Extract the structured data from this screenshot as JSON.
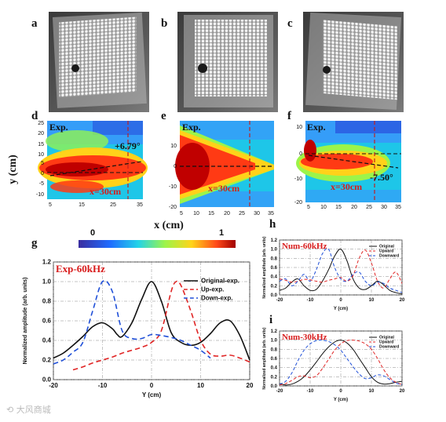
{
  "panels": {
    "a": "a",
    "b": "b",
    "c": "c",
    "d": "d",
    "e": "e",
    "f": "f",
    "g": "g",
    "h": "h",
    "i": "i"
  },
  "maps": [
    {
      "id": "d",
      "exp_label": "Exp.",
      "angle_label": "+6.79°",
      "x_line_label": "x=30cm",
      "y_ticks": [
        "25",
        "20",
        "15",
        "10",
        "5",
        "0",
        "-5",
        "-10"
      ],
      "x_ticks": [
        "5",
        "15",
        "25",
        "35"
      ]
    },
    {
      "id": "e",
      "exp_label": "Exp.",
      "x_line_label": "x=30cm",
      "y_ticks": [
        "10",
        "0",
        "-10",
        "-20"
      ],
      "x_ticks": [
        "5",
        "10",
        "15",
        "20",
        "25",
        "30",
        "35"
      ]
    },
    {
      "id": "f",
      "exp_label": "Exp.",
      "angle_label": "-7.50°",
      "x_line_label": "x=30cm",
      "y_ticks": [
        "10",
        "0",
        "-10",
        "-20"
      ],
      "x_ticks": [
        "5",
        "10",
        "15",
        "20",
        "25",
        "30",
        "35"
      ]
    }
  ],
  "y_axis_title": "y (cm)",
  "x_axis_title": "x (cm)",
  "colorbar": {
    "min_label": "0",
    "max_label": "1"
  },
  "chart_data": [
    {
      "id": "g",
      "type": "line",
      "title": "Exp-60kHz",
      "xlabel": "Y (cm)",
      "ylabel": "Normalized amplitude (arb. units)",
      "xlim": [
        -20,
        20
      ],
      "ylim": [
        0.0,
        1.2
      ],
      "x_ticks": [
        "-20",
        "-10",
        "0",
        "10",
        "20"
      ],
      "y_ticks": [
        "0.0",
        "0.2",
        "0.4",
        "0.6",
        "0.8",
        "1.0",
        "1.2"
      ],
      "grid": true,
      "legend": "top-right",
      "series": [
        {
          "name": "Original-exp.",
          "color": "#111111",
          "dash": "solid",
          "x": [
            -20,
            -18,
            -16,
            -14,
            -12,
            -10,
            -8,
            -7,
            -6,
            -4,
            -2,
            0,
            2,
            4,
            6,
            8,
            10,
            12,
            14,
            16,
            18,
            20
          ],
          "y": [
            0.22,
            0.27,
            0.35,
            0.44,
            0.54,
            0.58,
            0.52,
            0.46,
            0.44,
            0.58,
            0.82,
            1.0,
            0.8,
            0.48,
            0.38,
            0.35,
            0.38,
            0.47,
            0.58,
            0.6,
            0.45,
            0.2
          ]
        },
        {
          "name": "Up-exp.",
          "color": "#e02424",
          "dash": "dashed",
          "x": [
            -16,
            -14,
            -12,
            -10,
            -8,
            -6,
            -4,
            -2,
            0,
            2,
            4,
            5,
            6,
            8,
            10,
            12,
            14,
            16,
            18,
            20
          ],
          "y": [
            0.1,
            0.13,
            0.17,
            0.2,
            0.23,
            0.27,
            0.3,
            0.33,
            0.38,
            0.5,
            0.9,
            1.0,
            0.96,
            0.7,
            0.4,
            0.26,
            0.24,
            0.25,
            0.22,
            0.18
          ]
        },
        {
          "name": "Down-exp.",
          "color": "#1f4fd8",
          "dash": "dashed",
          "x": [
            -20,
            -18,
            -16,
            -14,
            -12,
            -10,
            -8,
            -6,
            -4,
            -2,
            0,
            2,
            4,
            6,
            8,
            10,
            12
          ],
          "y": [
            0.16,
            0.2,
            0.28,
            0.38,
            0.7,
            1.0,
            0.9,
            0.5,
            0.42,
            0.42,
            0.46,
            0.45,
            0.43,
            0.4,
            0.35,
            0.3,
            0.22
          ]
        }
      ]
    },
    {
      "id": "h",
      "type": "line",
      "title": "Num-60kHz",
      "xlabel": "Y (cm)",
      "ylabel": "Normalized amplitude (arb. units)",
      "xlim": [
        -20,
        20
      ],
      "ylim": [
        0.0,
        1.2
      ],
      "x_ticks": [
        "-20",
        "-10",
        "0",
        "10",
        "20"
      ],
      "y_ticks": [
        "0.0",
        "0.2",
        "0.4",
        "0.6",
        "0.8",
        "1.0",
        "1.2"
      ],
      "grid": true,
      "legend": "top-right",
      "series": [
        {
          "name": "Original",
          "color": "#111111",
          "dash": "solid",
          "x": [
            -20,
            -18,
            -16,
            -14,
            -12,
            -10,
            -8,
            -6,
            -4,
            -2,
            0,
            2,
            4,
            6,
            8,
            10,
            12,
            14,
            16,
            18,
            20
          ],
          "y": [
            0.1,
            0.15,
            0.28,
            0.35,
            0.2,
            0.1,
            0.12,
            0.3,
            0.55,
            0.85,
            1.0,
            0.75,
            0.35,
            0.15,
            0.12,
            0.2,
            0.3,
            0.22,
            0.1,
            0.05,
            0.02
          ]
        },
        {
          "name": "Upward",
          "color": "#e02424",
          "dash": "dashed",
          "x": [
            -20,
            -18,
            -16,
            -14,
            -12,
            -10,
            -8,
            -6,
            -4,
            -2,
            0,
            2,
            4,
            6,
            8,
            10,
            12,
            14,
            16,
            18,
            20
          ],
          "y": [
            0.35,
            0.32,
            0.28,
            0.3,
            0.34,
            0.33,
            0.3,
            0.28,
            0.32,
            0.35,
            0.38,
            0.3,
            0.42,
            0.8,
            0.98,
            0.7,
            0.3,
            0.15,
            0.35,
            0.5,
            0.25
          ]
        },
        {
          "name": "Downward",
          "color": "#1f4fd8",
          "dash": "dashed",
          "x": [
            -20,
            -18,
            -16,
            -14,
            -12,
            -10,
            -8,
            -6,
            -4,
            -2,
            0,
            2,
            4,
            6,
            8,
            10,
            12,
            14,
            16,
            18,
            20
          ],
          "y": [
            0.3,
            0.35,
            0.2,
            0.3,
            0.45,
            0.3,
            0.55,
            0.9,
            1.0,
            0.6,
            0.35,
            0.3,
            0.45,
            0.5,
            0.3,
            0.2,
            0.28,
            0.25,
            0.15,
            0.1,
            0.05
          ]
        }
      ]
    },
    {
      "id": "i",
      "type": "line",
      "title": "Num-30kHz",
      "xlabel": "Y (cm)",
      "ylabel": "Normalized amplitude (arb. units)",
      "xlim": [
        -20,
        20
      ],
      "ylim": [
        0.0,
        1.2
      ],
      "x_ticks": [
        "-20",
        "-10",
        "0",
        "10",
        "20"
      ],
      "y_ticks": [
        "0.0",
        "0.2",
        "0.4",
        "0.6",
        "0.8",
        "1.0",
        "1.2"
      ],
      "grid": true,
      "legend": "top-right",
      "series": [
        {
          "name": "Original",
          "color": "#111111",
          "dash": "solid",
          "x": [
            -20,
            -18,
            -16,
            -14,
            -12,
            -10,
            -8,
            -6,
            -4,
            -2,
            0,
            2,
            4,
            6,
            8,
            10,
            12,
            14,
            16,
            18,
            20
          ],
          "y": [
            0.05,
            0.02,
            0.04,
            0.1,
            0.2,
            0.35,
            0.52,
            0.7,
            0.85,
            0.96,
            1.0,
            0.94,
            0.8,
            0.6,
            0.4,
            0.2,
            0.08,
            0.04,
            0.05,
            0.08,
            0.1
          ]
        },
        {
          "name": "Upward",
          "color": "#e02424",
          "dash": "dashed",
          "x": [
            -20,
            -18,
            -16,
            -14,
            -12,
            -10,
            -8,
            -6,
            -4,
            -2,
            0,
            2,
            4,
            6,
            8,
            10,
            12,
            14,
            16,
            18,
            20
          ],
          "y": [
            0.02,
            0.05,
            0.12,
            0.2,
            0.22,
            0.18,
            0.22,
            0.38,
            0.58,
            0.78,
            0.92,
            0.99,
            1.0,
            0.98,
            0.92,
            0.8,
            0.6,
            0.36,
            0.18,
            0.08,
            0.03
          ]
        },
        {
          "name": "Downward",
          "color": "#1f4fd8",
          "dash": "dashed",
          "x": [
            -20,
            -18,
            -16,
            -14,
            -12,
            -10,
            -8,
            -6,
            -4,
            -2,
            0,
            2,
            4,
            6,
            8,
            10,
            12,
            14,
            16,
            18,
            20
          ],
          "y": [
            0.04,
            0.1,
            0.28,
            0.55,
            0.78,
            0.92,
            0.99,
            1.0,
            0.97,
            0.9,
            0.78,
            0.6,
            0.42,
            0.26,
            0.16,
            0.18,
            0.24,
            0.22,
            0.14,
            0.06,
            0.03
          ]
        }
      ]
    }
  ]
}
